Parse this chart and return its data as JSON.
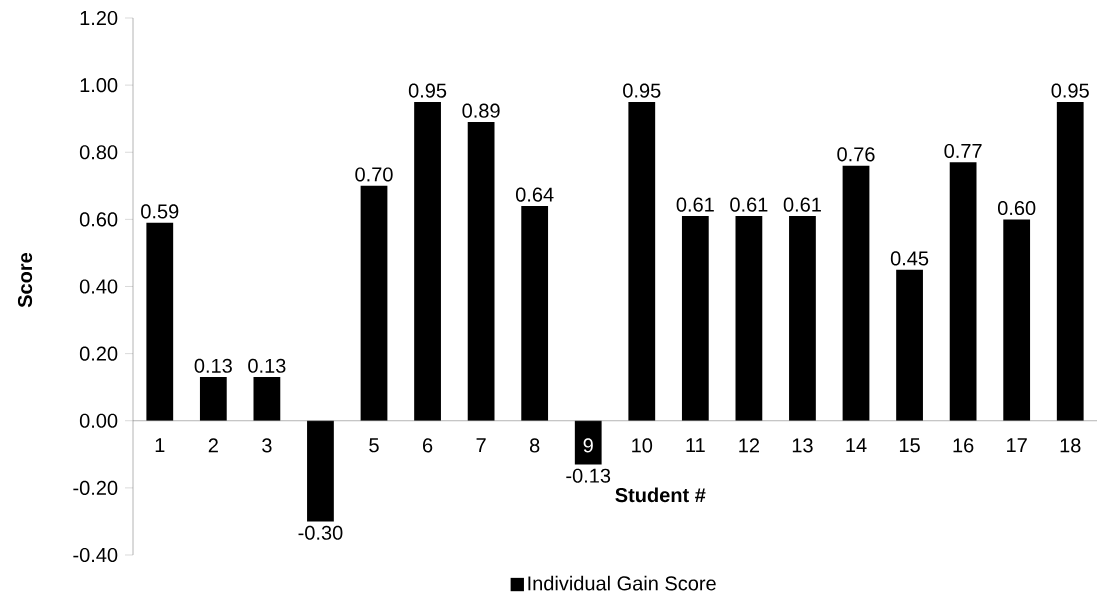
{
  "chart_data": {
    "type": "bar",
    "xlabel": "Student #",
    "ylabel": "Score",
    "categories": [
      "1",
      "2",
      "3",
      null,
      "5",
      "6",
      "7",
      "8",
      "9",
      "10",
      "11",
      "12",
      "13",
      "14",
      "15",
      "16",
      "17",
      "18"
    ],
    "series": [
      {
        "name": "Individual Gain Score",
        "color": "#000000",
        "values": [
          0.59,
          0.13,
          0.13,
          -0.3,
          0.7,
          0.95,
          0.89,
          0.64,
          -0.13,
          0.95,
          0.61,
          0.61,
          0.61,
          0.76,
          0.45,
          0.77,
          0.6,
          0.95
        ],
        "value_labels": [
          "0.59",
          "0.13",
          "0.13",
          "-0.30",
          "0.70",
          "0.95",
          "0.89",
          "0.64",
          "-0.13",
          "0.95",
          "0.61",
          "0.61",
          "0.61",
          "0.76",
          "0.45",
          "0.77",
          "0.60",
          "0.95"
        ]
      }
    ],
    "ylim": [
      -0.4,
      1.2
    ],
    "yticks": [
      {
        "value": -0.4,
        "label": "-0.40"
      },
      {
        "value": -0.2,
        "label": "-0.20"
      },
      {
        "value": 0,
        "label": "0.00"
      },
      {
        "value": 0.2,
        "label": "0.20"
      },
      {
        "value": 0.4,
        "label": "0.40"
      },
      {
        "value": 0.6,
        "label": "0.60"
      },
      {
        "value": 0.8,
        "label": "0.80"
      },
      {
        "value": 1.0,
        "label": "1.00"
      },
      {
        "value": 1.2,
        "label": "1.20"
      }
    ],
    "grid": false,
    "legend": "bottom"
  }
}
